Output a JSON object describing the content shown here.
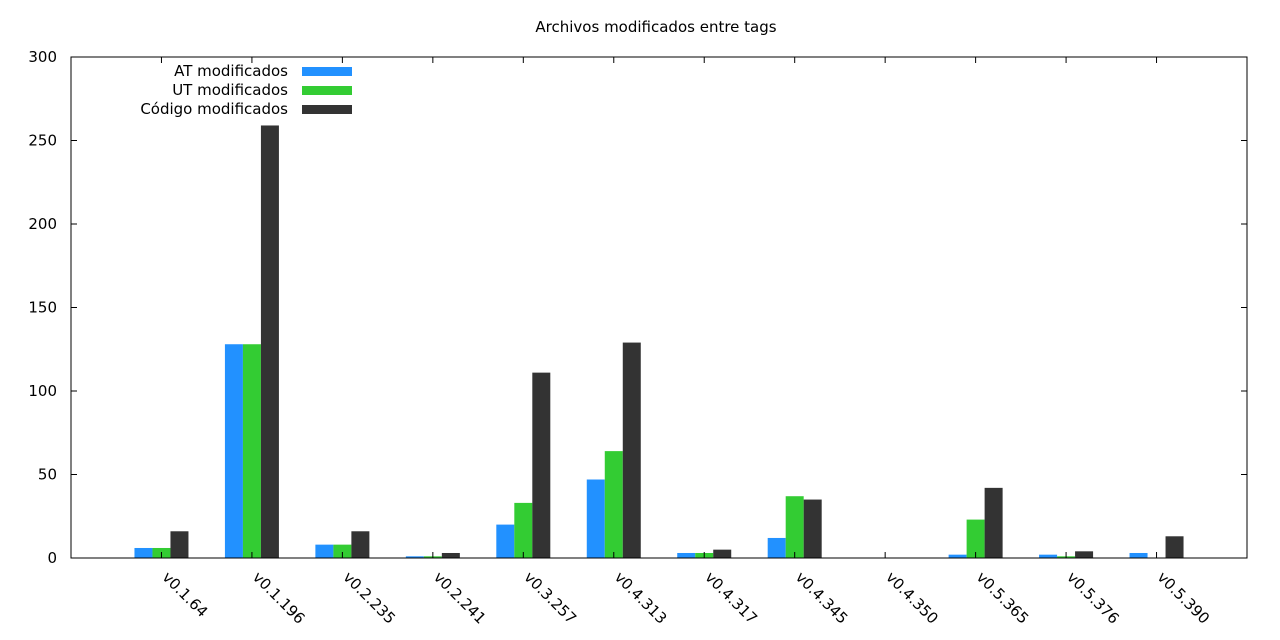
{
  "chart_data": {
    "type": "bar",
    "title": "Archivos modificados entre tags",
    "xlabel": "",
    "ylabel": "",
    "ylim": [
      0,
      300
    ],
    "yticks": [
      0,
      50,
      100,
      150,
      200,
      250,
      300
    ],
    "grid": false,
    "legend_position": "top-left",
    "categories": [
      "v0.1.64",
      "v0.1.196",
      "v0.2.235",
      "v0.2.241",
      "v0.3.257",
      "v0.4.313",
      "v0.4.317",
      "v0.4.345",
      "v0.4.350",
      "v0.5.365",
      "v0.5.376",
      "v0.5.390"
    ],
    "series": [
      {
        "name": "AT modificados",
        "color": "#2291ff",
        "values": [
          6,
          128,
          8,
          1,
          20,
          47,
          3,
          12,
          0,
          2,
          2,
          3
        ]
      },
      {
        "name": "UT modificados",
        "color": "#33cc33",
        "values": [
          6,
          128,
          8,
          1,
          33,
          64,
          3,
          37,
          0,
          23,
          1,
          0
        ]
      },
      {
        "name": "Código modificados",
        "color": "#333333",
        "values": [
          16,
          259,
          16,
          3,
          111,
          129,
          5,
          35,
          0,
          42,
          4,
          13
        ]
      }
    ]
  }
}
